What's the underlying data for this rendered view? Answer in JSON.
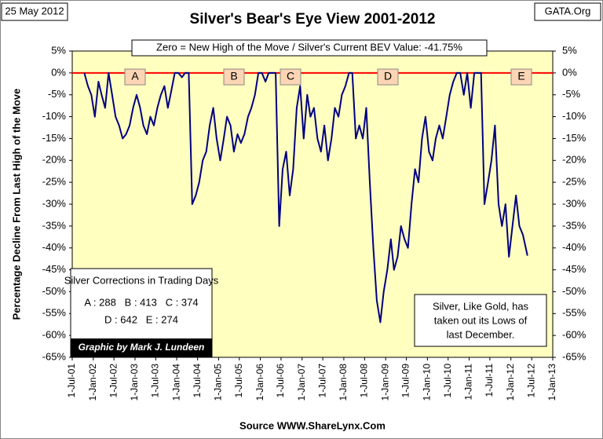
{
  "chart_data": {
    "type": "line",
    "title": "Silver's Bear's Eye View 2001-2012",
    "date_label": "25 May 2012",
    "corner_label": "GATA.Org",
    "source": "Source WWW.ShareLynx.Com",
    "y_label": "Percentage Decline From Last High of the Move",
    "header_note": "Zero = New High of the Move / Silver's Current BEV Value: -41.75%",
    "markers": [
      "A",
      "B",
      "C",
      "D",
      "E"
    ],
    "legend_box": {
      "title": "Silver Corrections in Trading Days",
      "lines": [
        "A : 288   B : 413   C : 374",
        "D : 642   E : 274"
      ],
      "credit": "Graphic by Mark J. Lundeen"
    },
    "note_box": [
      "Silver, Like Gold, has",
      "taken out its Lows of",
      "last December."
    ],
    "reference_line": {
      "value": 0,
      "color": "#ff0000"
    },
    "plot_background": "#ffffc0",
    "series": [
      {
        "name": "Silver BEV",
        "color": "#000080",
        "x": [
          "2001-10-15",
          "2001-11-15",
          "2001-12-15",
          "2002-01-15",
          "2002-02-15",
          "2002-03-15",
          "2002-04-15",
          "2002-05-15",
          "2002-06-15",
          "2002-07-15",
          "2002-08-15",
          "2002-09-15",
          "2002-10-15",
          "2002-11-15",
          "2002-12-15",
          "2003-01-15",
          "2003-02-15",
          "2003-03-15",
          "2003-04-15",
          "2003-05-15",
          "2003-06-15",
          "2003-07-15",
          "2003-08-15",
          "2003-09-15",
          "2003-10-15",
          "2003-11-15",
          "2003-12-15",
          "2004-01-15",
          "2004-02-15",
          "2004-03-15",
          "2004-04-15",
          "2004-05-15",
          "2004-06-15",
          "2004-07-15",
          "2004-08-15",
          "2004-09-15",
          "2004-10-15",
          "2004-11-15",
          "2004-12-15",
          "2005-01-15",
          "2005-02-15",
          "2005-03-15",
          "2005-04-15",
          "2005-05-15",
          "2005-06-15",
          "2005-07-15",
          "2005-08-15",
          "2005-09-15",
          "2005-10-15",
          "2005-11-15",
          "2005-12-15",
          "2006-01-15",
          "2006-02-15",
          "2006-03-15",
          "2006-04-15",
          "2006-05-15",
          "2006-06-15",
          "2006-07-15",
          "2006-08-15",
          "2006-09-15",
          "2006-10-15",
          "2006-11-15",
          "2006-12-15",
          "2007-01-15",
          "2007-02-15",
          "2007-03-15",
          "2007-04-15",
          "2007-05-15",
          "2007-06-15",
          "2007-07-15",
          "2007-08-15",
          "2007-09-15",
          "2007-10-15",
          "2007-11-15",
          "2007-12-15",
          "2008-01-15",
          "2008-02-15",
          "2008-03-15",
          "2008-04-15",
          "2008-05-15",
          "2008-06-15",
          "2008-07-15",
          "2008-08-15",
          "2008-09-15",
          "2008-10-15",
          "2008-11-15",
          "2008-12-15",
          "2009-01-15",
          "2009-02-15",
          "2009-03-15",
          "2009-04-15",
          "2009-05-15",
          "2009-06-15",
          "2009-07-15",
          "2009-08-15",
          "2009-09-15",
          "2009-10-15",
          "2009-11-15",
          "2009-12-15",
          "2010-01-15",
          "2010-02-15",
          "2010-03-15",
          "2010-04-15",
          "2010-05-15",
          "2010-06-15",
          "2010-07-15",
          "2010-08-15",
          "2010-09-15",
          "2010-10-15",
          "2010-11-15",
          "2010-12-15",
          "2011-01-15",
          "2011-02-15",
          "2011-03-15",
          "2011-04-15",
          "2011-05-15",
          "2011-06-15",
          "2011-07-15",
          "2011-08-15",
          "2011-09-15",
          "2011-10-15",
          "2011-11-15",
          "2011-12-15",
          "2012-01-15",
          "2012-02-15",
          "2012-03-15",
          "2012-04-15",
          "2012-05-25"
        ],
        "values": [
          0,
          -3,
          -5,
          -10,
          -2,
          -5,
          -8,
          0,
          -5,
          -10,
          -12,
          -15,
          -14,
          -12,
          -8,
          -5,
          -8,
          -12,
          -14,
          -10,
          -12,
          -8,
          -5,
          -3,
          -8,
          -4,
          0,
          0,
          -1,
          0,
          0,
          -30,
          -28,
          -25,
          -20,
          -18,
          -12,
          -8,
          -15,
          -20,
          -15,
          -10,
          -12,
          -18,
          -14,
          -16,
          -14,
          -10,
          -8,
          -5,
          0,
          0,
          -2,
          0,
          0,
          0,
          -35,
          -22,
          -18,
          -28,
          -22,
          -8,
          -3,
          -15,
          -5,
          -10,
          -8,
          -15,
          -18,
          -12,
          -20,
          -15,
          -8,
          -10,
          -5,
          -3,
          0,
          0,
          -15,
          -12,
          -15,
          -8,
          -25,
          -40,
          -52,
          -57,
          -50,
          -45,
          -38,
          -45,
          -42,
          -35,
          -38,
          -40,
          -30,
          -22,
          -25,
          -15,
          -10,
          -18,
          -20,
          -15,
          -12,
          -15,
          -10,
          -5,
          -2,
          0,
          0,
          -5,
          0,
          -8,
          0,
          0,
          0,
          -30,
          -25,
          -20,
          -12,
          -30,
          -35,
          -30,
          -42,
          -35,
          -28,
          -35,
          -37,
          -41.75
        ]
      }
    ],
    "xlim": [
      "2001-07-01",
      "2013-01-01"
    ],
    "xticks": [
      {
        "value": "2001-07-01",
        "label": "1-Jul-01"
      },
      {
        "value": "2002-01-01",
        "label": "1-Jan-02"
      },
      {
        "value": "2002-07-01",
        "label": "1-Jul-02"
      },
      {
        "value": "2003-01-01",
        "label": "1-Jan-03"
      },
      {
        "value": "2003-07-01",
        "label": "1-Jul-03"
      },
      {
        "value": "2004-01-01",
        "label": "1-Jan-04"
      },
      {
        "value": "2004-07-01",
        "label": "1-Jul-04"
      },
      {
        "value": "2005-01-01",
        "label": "1-Jan-05"
      },
      {
        "value": "2005-07-01",
        "label": "1-Jul-05"
      },
      {
        "value": "2006-01-01",
        "label": "1-Jan-06"
      },
      {
        "value": "2006-07-01",
        "label": "1-Jul-06"
      },
      {
        "value": "2007-01-01",
        "label": "1-Jan-07"
      },
      {
        "value": "2007-07-01",
        "label": "1-Jul-07"
      },
      {
        "value": "2008-01-01",
        "label": "1-Jan-08"
      },
      {
        "value": "2008-07-01",
        "label": "1-Jul-08"
      },
      {
        "value": "2009-01-01",
        "label": "1-Jan-09"
      },
      {
        "value": "2009-07-01",
        "label": "1-Jul-09"
      },
      {
        "value": "2010-01-01",
        "label": "1-Jan-10"
      },
      {
        "value": "2010-07-01",
        "label": "1-Jul-10"
      },
      {
        "value": "2011-01-01",
        "label": "1-Jan-11"
      },
      {
        "value": "2011-07-01",
        "label": "1-Jul-11"
      },
      {
        "value": "2012-01-01",
        "label": "1-Jan-12"
      },
      {
        "value": "2012-07-01",
        "label": "1-Jul-12"
      },
      {
        "value": "2013-01-01",
        "label": "1-Jan-13"
      }
    ],
    "ylim": [
      -65,
      5
    ],
    "yticks": [
      {
        "value": 5,
        "label": "5%"
      },
      {
        "value": 0,
        "label": "0%"
      },
      {
        "value": -5,
        "label": "-5%"
      },
      {
        "value": -10,
        "label": "-10%"
      },
      {
        "value": -15,
        "label": "-15%"
      },
      {
        "value": -20,
        "label": "-20%"
      },
      {
        "value": -25,
        "label": "-25%"
      },
      {
        "value": -30,
        "label": "-30%"
      },
      {
        "value": -35,
        "label": "-35%"
      },
      {
        "value": -40,
        "label": "-40%"
      },
      {
        "value": -45,
        "label": "-45%"
      },
      {
        "value": -50,
        "label": "-50%"
      },
      {
        "value": -55,
        "label": "-55%"
      },
      {
        "value": -60,
        "label": "-60%"
      },
      {
        "value": -65,
        "label": "-65%"
      }
    ],
    "y2lim": [
      -65,
      5
    ],
    "y2ticks": [
      {
        "value": 5,
        "label": "5%"
      },
      {
        "value": 0,
        "label": "0%"
      },
      {
        "value": -5,
        "label": "-5%"
      },
      {
        "value": -10,
        "label": "-10%"
      },
      {
        "value": -15,
        "label": "-15%"
      },
      {
        "value": -20,
        "label": "-20%"
      },
      {
        "value": -25,
        "label": "-25%"
      },
      {
        "value": -30,
        "label": "-30%"
      },
      {
        "value": -35,
        "label": "-35%"
      },
      {
        "value": -40,
        "label": "-40%"
      },
      {
        "value": -45,
        "label": "-45%"
      },
      {
        "value": -50,
        "label": "-50%"
      },
      {
        "value": -55,
        "label": "-55%"
      },
      {
        "value": -60,
        "label": "-60%"
      },
      {
        "value": -65,
        "label": "-65%"
      }
    ],
    "grid": false
  }
}
